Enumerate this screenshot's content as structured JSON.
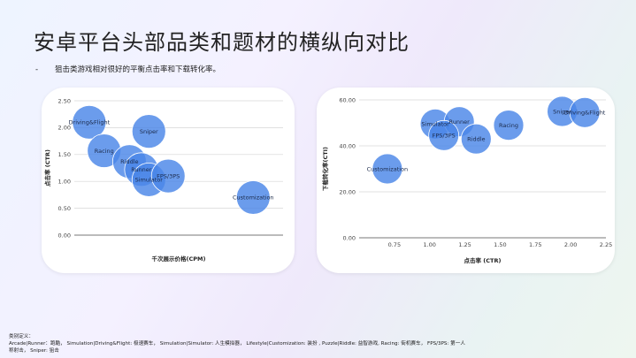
{
  "page": {
    "title": "安卓平台头部品类和题材的横纵向对比",
    "bullet_dash": "-",
    "subtitle": "狙击类游戏相对很好的平衡点击率和下载转化率。",
    "footer_lines": [
      "类别定义：",
      "Arcade|Runner：跑酷， Simulation|Driving&Flight: 极速赛车， Simulation|Simulator: 人生模拟器， Lifestyle|Customization: 装扮 , Puzzle|Riddle: 益智游戏, Racing: 街机赛车， FPS/3PS: 第一人",
      "称射击，  Sniper: 狙击"
    ]
  },
  "chart_data": [
    {
      "type": "scatter",
      "xlabel": "千次展示价格(CPM)",
      "ylabel": "点击率 (CTR)",
      "ylim": [
        0,
        2.5
      ],
      "yticks": [
        "0.00",
        "0.50",
        "1.00",
        "1.50",
        "2.00",
        "2.50"
      ],
      "xticks": [],
      "grid": "horizontal",
      "bubble_color": "#4a86e8",
      "points": [
        {
          "label": "Driving&Flight",
          "x": 0.1,
          "y": 2.1
        },
        {
          "label": "Sniper",
          "x": 0.5,
          "y": 1.93
        },
        {
          "label": "Racing",
          "x": 0.2,
          "y": 1.57
        },
        {
          "label": "Riddle",
          "x": 0.37,
          "y": 1.37
        },
        {
          "label": "Runner",
          "x": 0.45,
          "y": 1.22
        },
        {
          "label": "Simulator",
          "x": 0.5,
          "y": 1.03
        },
        {
          "label": "FPS/3PS",
          "x": 0.63,
          "y": 1.1
        },
        {
          "label": "Customization",
          "x": 1.2,
          "y": 0.7
        }
      ]
    },
    {
      "type": "scatter",
      "xlabel": "点击率 (CTR)",
      "ylabel": "下载转化率(CTI)",
      "xlim": [
        0.5,
        2.25
      ],
      "ylim": [
        0,
        60
      ],
      "xticks": [
        "0.75",
        "1.00",
        "1.25",
        "1.50",
        "1.75",
        "2.00",
        "2.25"
      ],
      "yticks": [
        "0.00",
        "20.00",
        "40.00",
        "60.00"
      ],
      "grid": "horizontal",
      "bubble_color": "#4a86e8",
      "points": [
        {
          "label": "Customization",
          "x": 0.7,
          "y": 30
        },
        {
          "label": "Simulator",
          "x": 1.04,
          "y": 49.5
        },
        {
          "label": "Runner",
          "x": 1.21,
          "y": 50.5
        },
        {
          "label": "FPS/3PS",
          "x": 1.1,
          "y": 44.5
        },
        {
          "label": "Riddle",
          "x": 1.33,
          "y": 43
        },
        {
          "label": "Racing",
          "x": 1.56,
          "y": 49
        },
        {
          "label": "Sniper",
          "x": 1.94,
          "y": 55
        },
        {
          "label": "Driving&Flight",
          "x": 2.1,
          "y": 54.5
        }
      ]
    }
  ]
}
